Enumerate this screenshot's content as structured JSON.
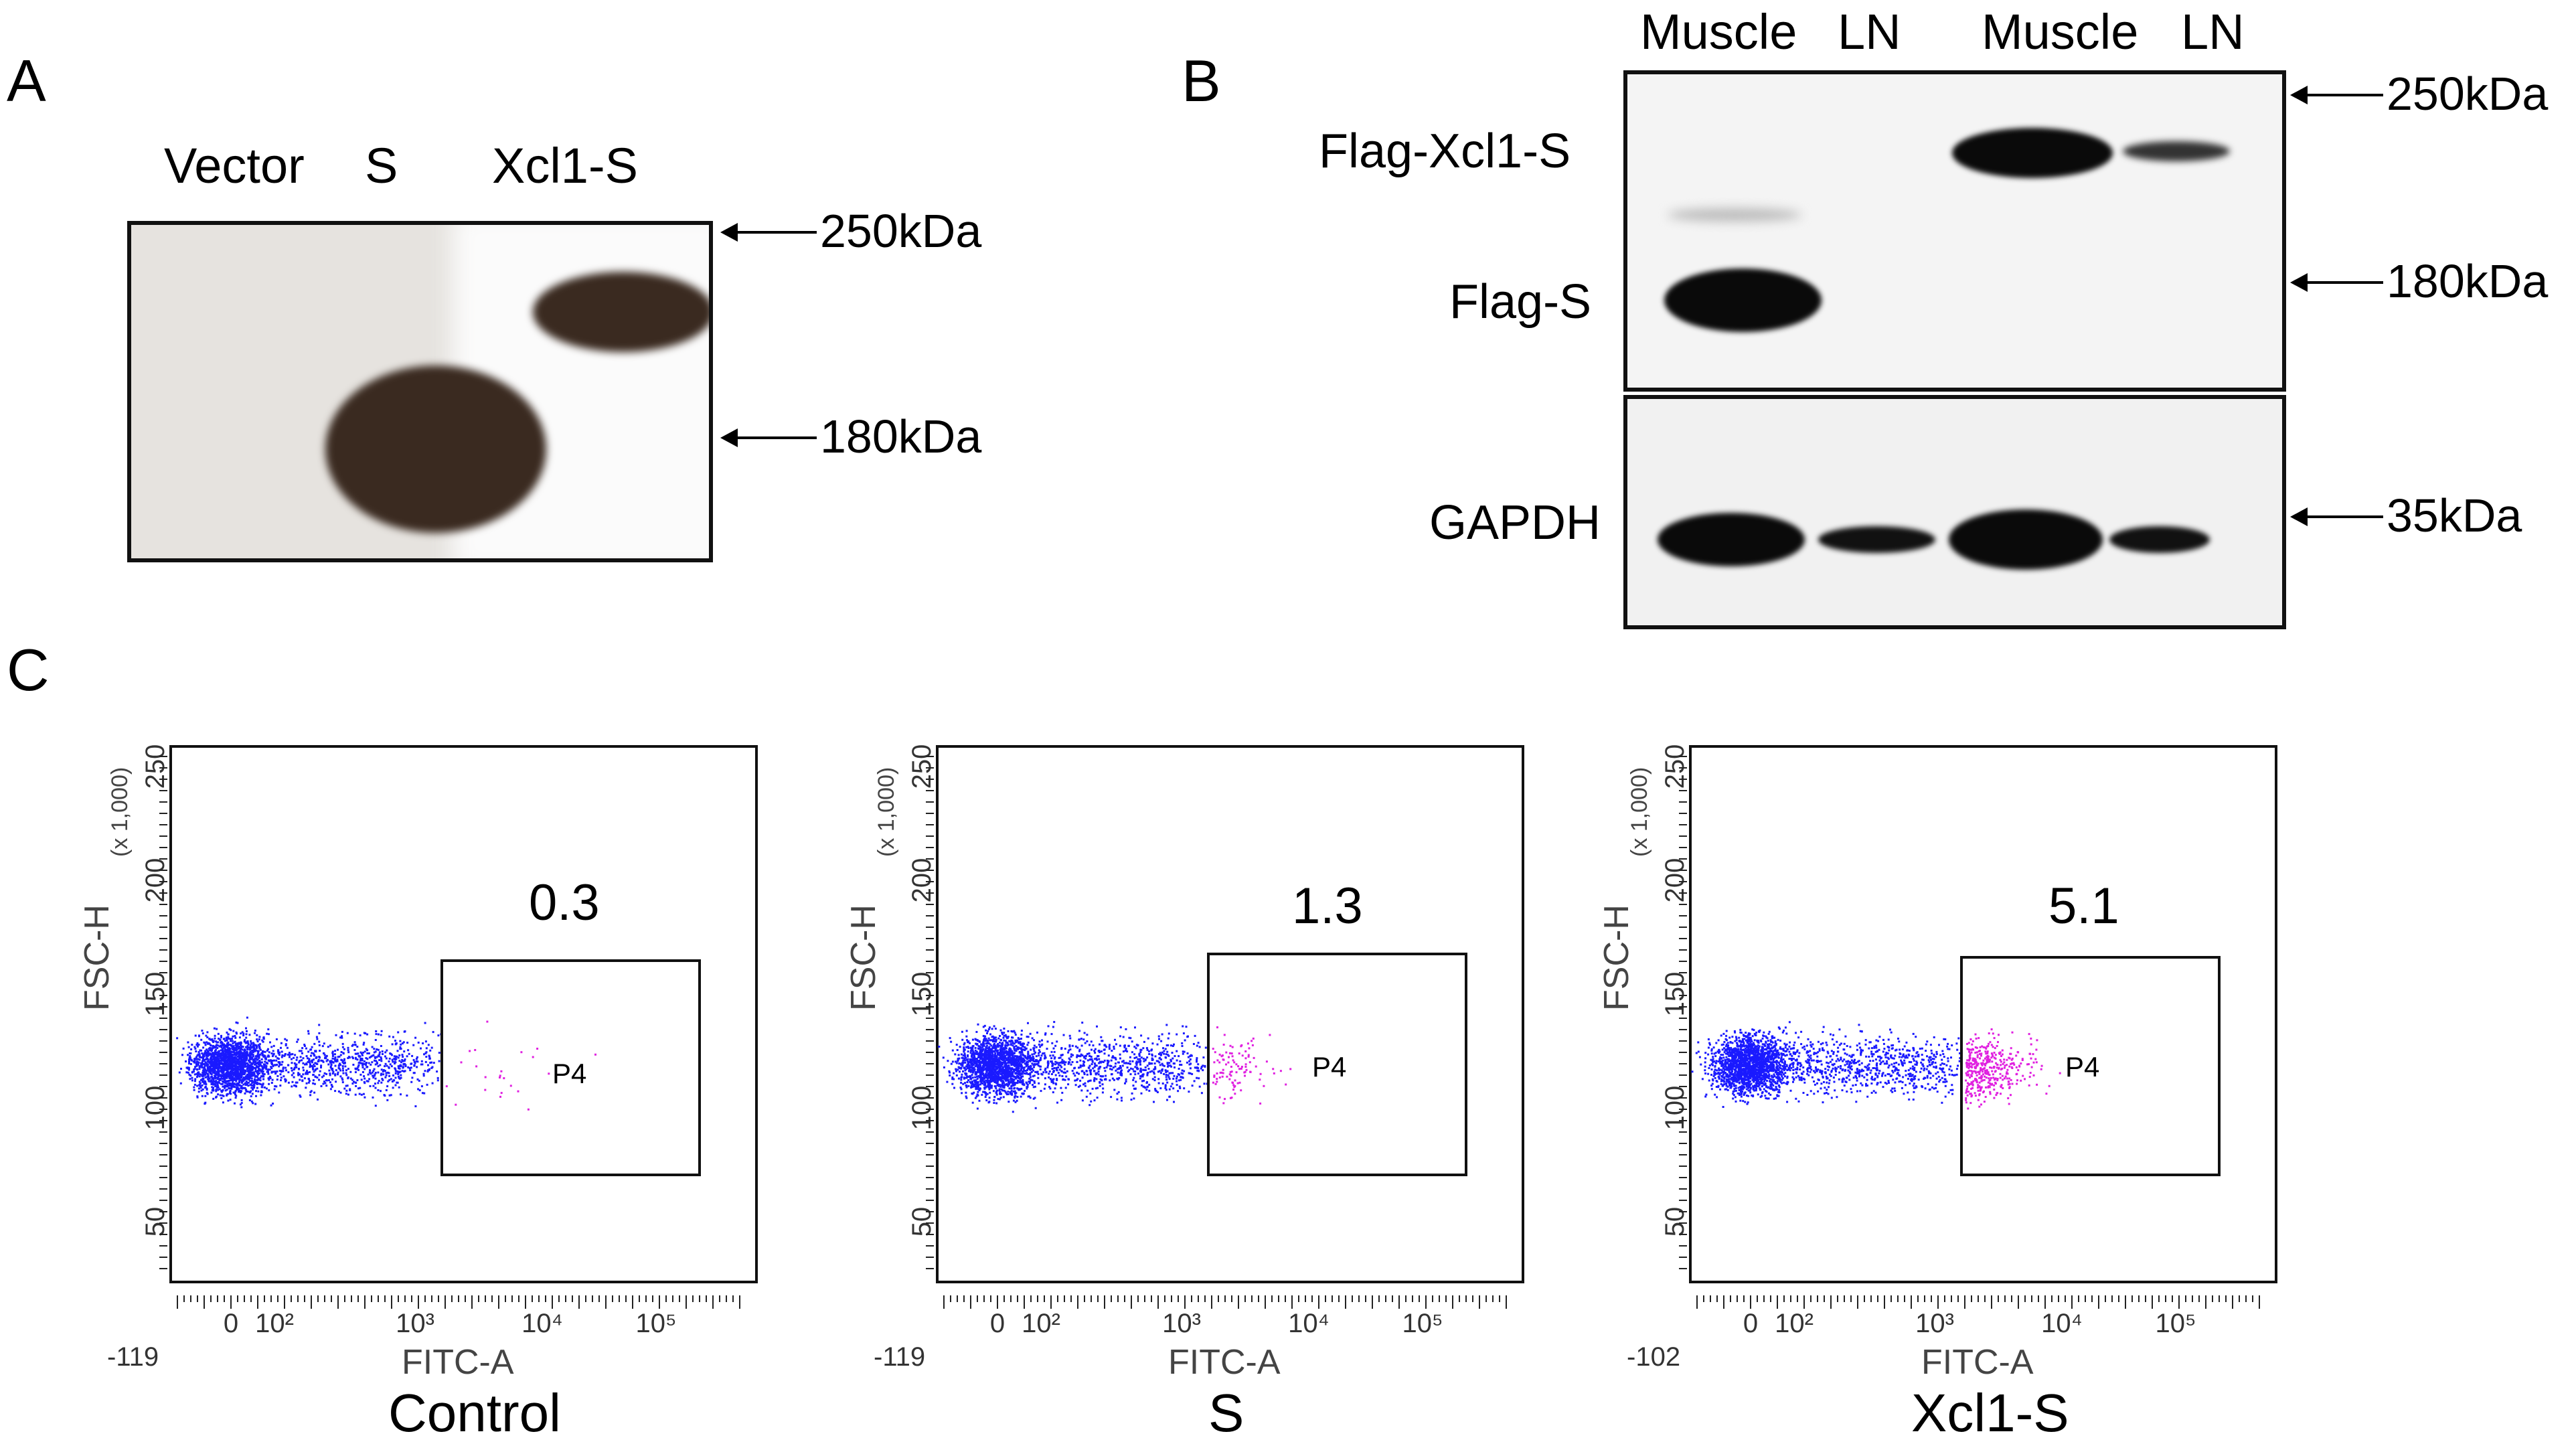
{
  "panelA": {
    "letter": "A",
    "lanes": [
      "Vector",
      "S",
      "Xcl1-S"
    ],
    "markers": [
      "250kDa",
      "180kDa"
    ]
  },
  "panelB": {
    "letter": "B",
    "lanes": [
      "Muscle",
      "LN",
      "Muscle",
      "LN"
    ],
    "bands": [
      "Flag-Xcl1-S",
      "Flag-S",
      "GAPDH"
    ],
    "markers": [
      "250kDa",
      "180kDa",
      "35kDa"
    ]
  },
  "panelC": {
    "letter": "C",
    "plots": [
      {
        "caption": "Control",
        "gate_value": "0.3",
        "gate_name": "P4",
        "x_min": "-119",
        "pink_fraction": 0.003
      },
      {
        "caption": "S",
        "gate_value": "1.3",
        "gate_name": "P4",
        "x_min": "-119",
        "pink_fraction": 0.013
      },
      {
        "caption": "Xcl1-S",
        "gate_value": "5.1",
        "gate_name": "P4",
        "x_min": "-102",
        "pink_fraction": 0.051
      }
    ],
    "y_axis_label": "FSC-H",
    "y_scale_label": "(x 1,000)",
    "x_axis_label": "FITC-A",
    "y_ticks": [
      "50",
      "100",
      "150",
      "200",
      "250"
    ],
    "x_ticks": [
      "0",
      "10²",
      "10³",
      "10⁴",
      "10⁵"
    ],
    "colors": {
      "population": "#1a1aff",
      "gated": "#e020e0"
    }
  }
}
